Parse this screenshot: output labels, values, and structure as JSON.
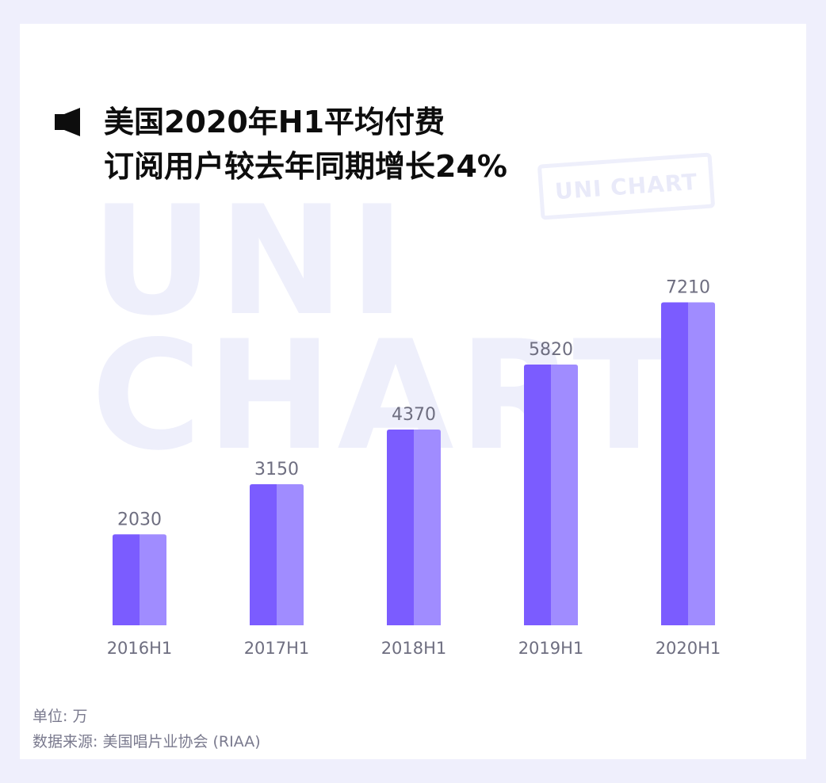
{
  "title": {
    "line1": "美国2020年H1平均付费",
    "line2": "订阅用户较去年同期增长24%"
  },
  "watermark": {
    "line1": "UNI",
    "line2": "CHART",
    "stamp": "UNI CHART"
  },
  "chart_data": {
    "type": "bar",
    "categories": [
      "2016H1",
      "2017H1",
      "2018H1",
      "2019H1",
      "2020H1"
    ],
    "values": [
      2030,
      3150,
      4370,
      5820,
      7210
    ],
    "title": "美国2020年H1平均付费订阅用户较去年同期增长24%",
    "xlabel": "",
    "ylabel": "",
    "ylim": [
      0,
      7500
    ],
    "grid": false,
    "colors": {
      "bar_left": "#7b5cff",
      "bar_right": "#a08cff",
      "value_label": "#6e6e80",
      "tick_label": "#6e6e80"
    }
  },
  "footer": {
    "unit": "单位: 万",
    "source": "数据来源: 美国唱片业协会 (RIAA)"
  }
}
